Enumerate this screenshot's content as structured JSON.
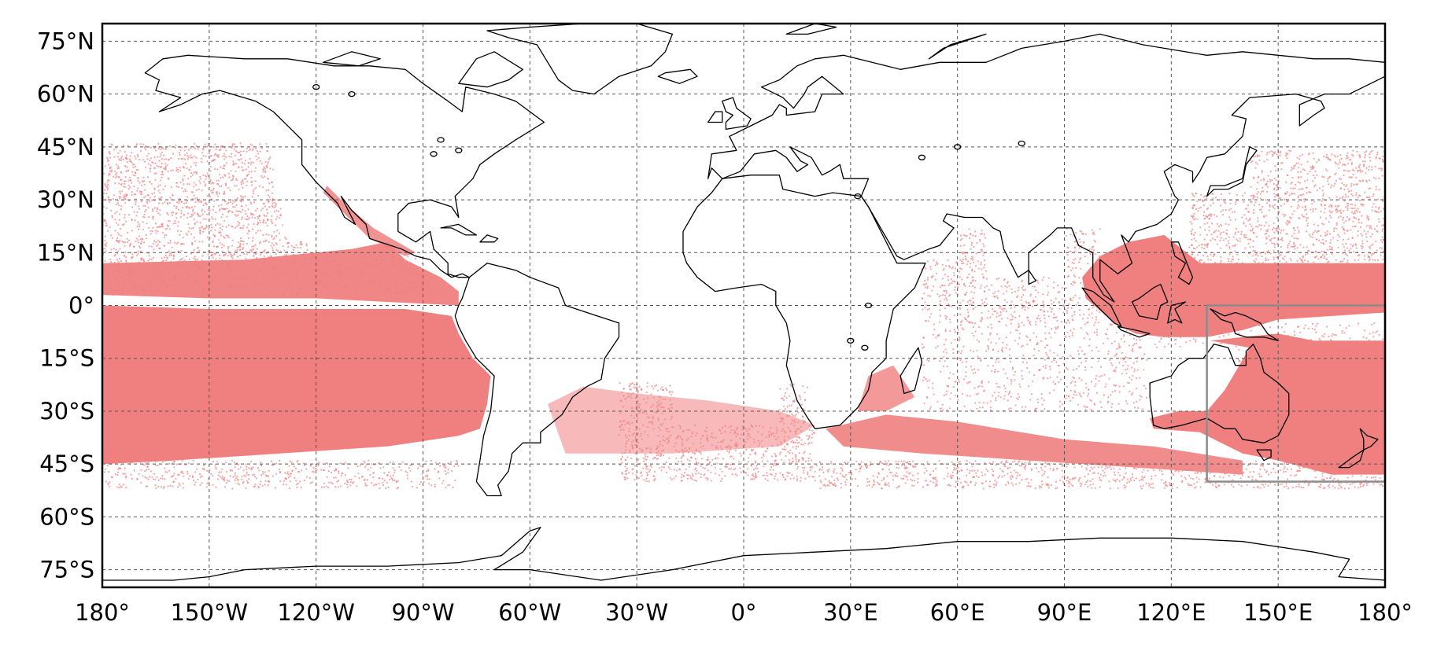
{
  "map": {
    "projection": "equirectangular",
    "lon_range": [
      -180,
      180
    ],
    "lat_range": [
      -80,
      80
    ],
    "gridlines": true,
    "coastlines": true,
    "lat_ticks": [
      {
        "value": 75,
        "label": "75°N"
      },
      {
        "value": 60,
        "label": "60°N"
      },
      {
        "value": 45,
        "label": "45°N"
      },
      {
        "value": 30,
        "label": "30°N"
      },
      {
        "value": 15,
        "label": "15°N"
      },
      {
        "value": 0,
        "label": "0°"
      },
      {
        "value": -15,
        "label": "15°S"
      },
      {
        "value": -30,
        "label": "30°S"
      },
      {
        "value": -45,
        "label": "45°S"
      },
      {
        "value": -60,
        "label": "60°S"
      },
      {
        "value": -75,
        "label": "75°S"
      }
    ],
    "lon_ticks": [
      {
        "value": -180,
        "label": "180°"
      },
      {
        "value": -150,
        "label": "150°W"
      },
      {
        "value": -120,
        "label": "120°W"
      },
      {
        "value": -90,
        "label": "90°W"
      },
      {
        "value": -60,
        "label": "60°W"
      },
      {
        "value": -30,
        "label": "30°W"
      },
      {
        "value": 0,
        "label": "0°"
      },
      {
        "value": 30,
        "label": "30°E"
      },
      {
        "value": 60,
        "label": "60°E"
      },
      {
        "value": 90,
        "label": "90°E"
      },
      {
        "value": 120,
        "label": "120°E"
      },
      {
        "value": 150,
        "label": "150°E"
      },
      {
        "value": 180,
        "label": "180°"
      }
    ],
    "point_color": "#f08080",
    "highlight_box": {
      "lon_min": 130,
      "lon_max": 180,
      "lat_min": -50,
      "lat_max": 0,
      "color": "#8c8c8c"
    }
  }
}
